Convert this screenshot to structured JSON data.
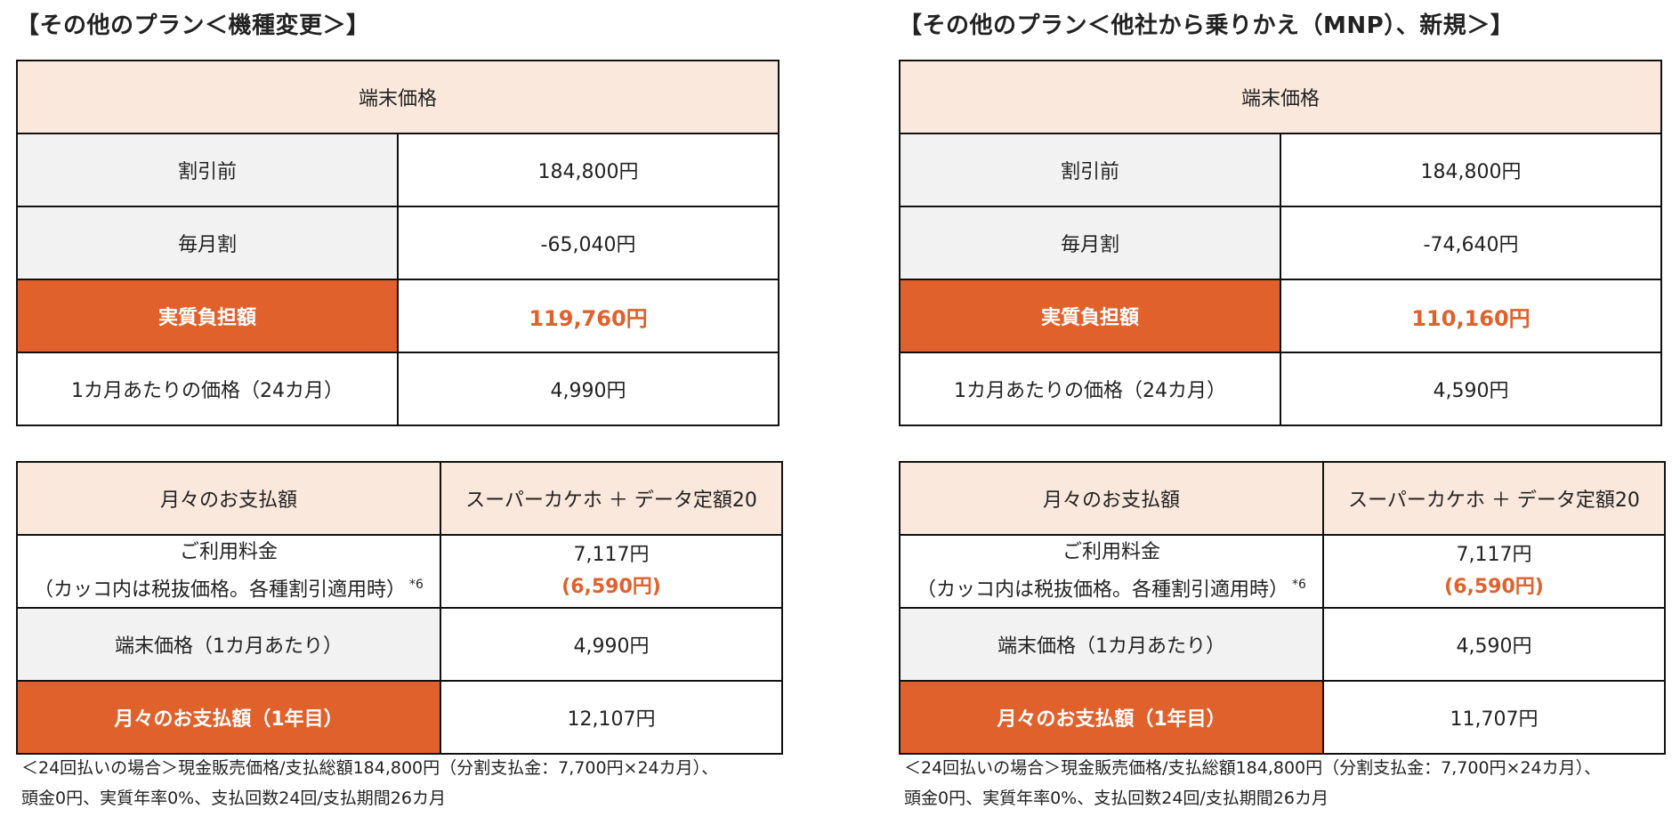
{
  "left": {
    "title": "【その他のプラン＜機種変更＞】",
    "device": {
      "header": "端末価格",
      "rows": [
        {
          "label": "割引前",
          "value": "184,800円"
        },
        {
          "label": "毎月割",
          "value": "-65,040円"
        },
        {
          "label": "実質負担額",
          "value": "119,760円"
        },
        {
          "label": "1カ月あたりの価格（24カ月）",
          "value": "4,990円"
        }
      ]
    },
    "monthly": {
      "header_label": "月々のお支払額",
      "header_plan": "スーパーカケホ ＋ データ定額20",
      "usage_label_1": "ご利用料金",
      "usage_label_2": "（カッコ内は税抜価格。各種割引適用時）",
      "usage_sup": "*6",
      "usage_value": "7,117円",
      "usage_value_ex": "(6,590円)",
      "device_label": "端末価格（1カ月あたり）",
      "device_value": "4,990円",
      "total_label": "月々のお支払額（1年目）",
      "total_value": "12,107円"
    },
    "note_1": "＜24回払いの場合＞現金販売価格/支払総額184,800円（分割支払金：7,700円×24カ月）、",
    "note_2": "頭金0円、実質年率0%、支払回数24回/支払期間26カ月"
  },
  "right": {
    "title": "【その他のプラン＜他社から乗りかえ（MNP）、新規＞】",
    "device": {
      "header": "端末価格",
      "rows": [
        {
          "label": "割引前",
          "value": "184,800円"
        },
        {
          "label": "毎月割",
          "value": "-74,640円"
        },
        {
          "label": "実質負担額",
          "value": "110,160円"
        },
        {
          "label": "1カ月あたりの価格（24カ月）",
          "value": "4,590円"
        }
      ]
    },
    "monthly": {
      "header_label": "月々のお支払額",
      "header_plan": "スーパーカケホ ＋ データ定額20",
      "usage_label_1": "ご利用料金",
      "usage_label_2": "（カッコ内は税抜価格。各種割引適用時）",
      "usage_sup": "*6",
      "usage_value": "7,117円",
      "usage_value_ex": "(6,590円)",
      "device_label": "端末価格（1カ月あたり）",
      "device_value": "4,590円",
      "total_label": "月々のお支払額（1年目）",
      "total_value": "11,707円"
    },
    "note_1": "＜24回払いの場合＞現金販売価格/支払総額184,800円（分割支払金：7,700円×24カ月）、",
    "note_2": "頭金0円、実質年率0%、支払回数24回/支払期間26カ月"
  },
  "colors": {
    "accent_orange": "#e0612b",
    "header_peach": "#fae8dc",
    "label_grey": "#f2f2f2"
  }
}
